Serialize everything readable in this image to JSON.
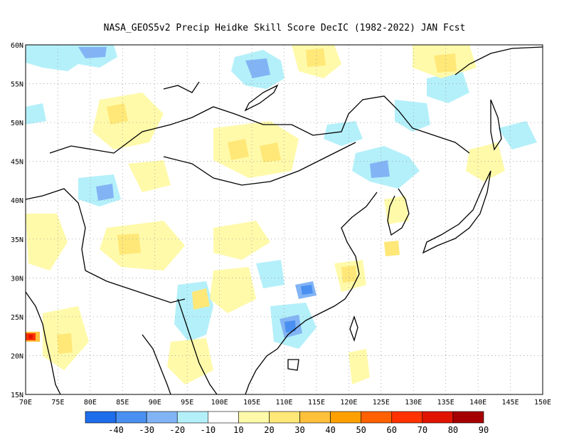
{
  "title": "NASA_GEOS5v2 Precip Heidke Skill Score DecIC (1982-2022) JAN Fcst",
  "map": {
    "lon_range": [
      70,
      150
    ],
    "lat_range": [
      15,
      60
    ],
    "x_ticks": [
      "70E",
      "75E",
      "80E",
      "85E",
      "90E",
      "95E",
      "100E",
      "105E",
      "110E",
      "115E",
      "120E",
      "125E",
      "130E",
      "135E",
      "140E",
      "145E",
      "150E"
    ],
    "y_ticks": [
      "60N",
      "55N",
      "50N",
      "45N",
      "40N",
      "35N",
      "30N",
      "25N",
      "20N",
      "15N"
    ],
    "gridlines": true,
    "grid_style": "dotted"
  },
  "colorbar": {
    "labels": [
      "-40",
      "-30",
      "-20",
      "-10",
      "10",
      "20",
      "30",
      "40",
      "50",
      "60",
      "70",
      "80",
      "90"
    ],
    "colors": [
      "#1e6eeb",
      "#4a90f0",
      "#82b4f5",
      "#b4f0fa",
      "#ffffff",
      "#fffaaa",
      "#ffe878",
      "#ffc03c",
      "#ffa000",
      "#ff6000",
      "#ff3200",
      "#e11400",
      "#a50000"
    ]
  },
  "legend": {
    "blue": "#b4f0fa",
    "mid_blue": "#82b4f5",
    "dark_blue": "#4a90f0",
    "yellow": "#fffaaa",
    "gold": "#ffe878",
    "orange": "#ffc03c",
    "red": "#ff3200"
  }
}
